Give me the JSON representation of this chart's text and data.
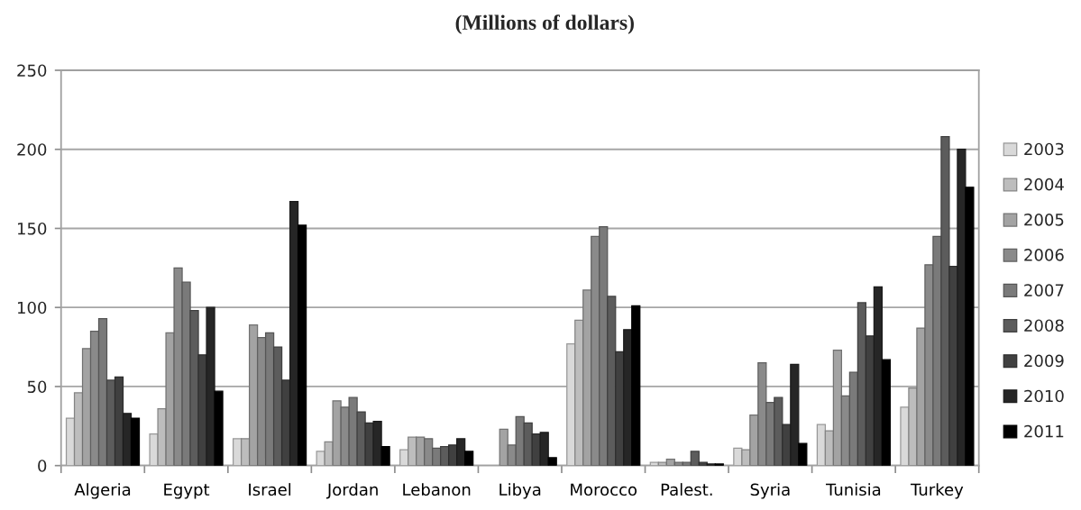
{
  "chart_data": {
    "type": "bar",
    "title": "(Millions of dollars)",
    "categories": [
      "Algeria",
      "Egypt",
      "Israel",
      "Jordan",
      "Lebanon",
      "Libya",
      "Morocco",
      "Palest.",
      "Syria",
      "Tunisia",
      "Turkey"
    ],
    "series": [
      {
        "name": "2003",
        "color": "#d9d9d9",
        "values": [
          30,
          20,
          17,
          9,
          10,
          null,
          77,
          2,
          11,
          26,
          37
        ]
      },
      {
        "name": "2004",
        "color": "#bdbdbd",
        "values": [
          46,
          36,
          17,
          15,
          18,
          null,
          92,
          2,
          10,
          22,
          49
        ]
      },
      {
        "name": "2005",
        "color": "#a3a3a3",
        "values": [
          74,
          84,
          89,
          41,
          18,
          23,
          111,
          4,
          32,
          73,
          87
        ]
      },
      {
        "name": "2006",
        "color": "#8a8a8a",
        "values": [
          85,
          125,
          81,
          37,
          17,
          13,
          145,
          2,
          65,
          44,
          127
        ]
      },
      {
        "name": "2007",
        "color": "#7a7a7a",
        "values": [
          93,
          116,
          84,
          43,
          11,
          31,
          151,
          2,
          40,
          59,
          145
        ]
      },
      {
        "name": "2008",
        "color": "#5c5c5c",
        "values": [
          54,
          98,
          75,
          34,
          12,
          27,
          107,
          9,
          43,
          103,
          208
        ]
      },
      {
        "name": "2009",
        "color": "#404040",
        "values": [
          56,
          70,
          54,
          27,
          13,
          20,
          72,
          2,
          26,
          82,
          126
        ]
      },
      {
        "name": "2010",
        "color": "#262626",
        "values": [
          33,
          100,
          167,
          28,
          17,
          21,
          86,
          1,
          64,
          113,
          200
        ]
      },
      {
        "name": "2011",
        "color": "#000000",
        "values": [
          30,
          47,
          152,
          12,
          9,
          5,
          101,
          1,
          14,
          67,
          176
        ]
      }
    ],
    "ylim": [
      0,
      250
    ],
    "yticks": [
      0,
      50,
      100,
      150,
      200,
      250
    ],
    "grid": "y",
    "legend": "right"
  }
}
